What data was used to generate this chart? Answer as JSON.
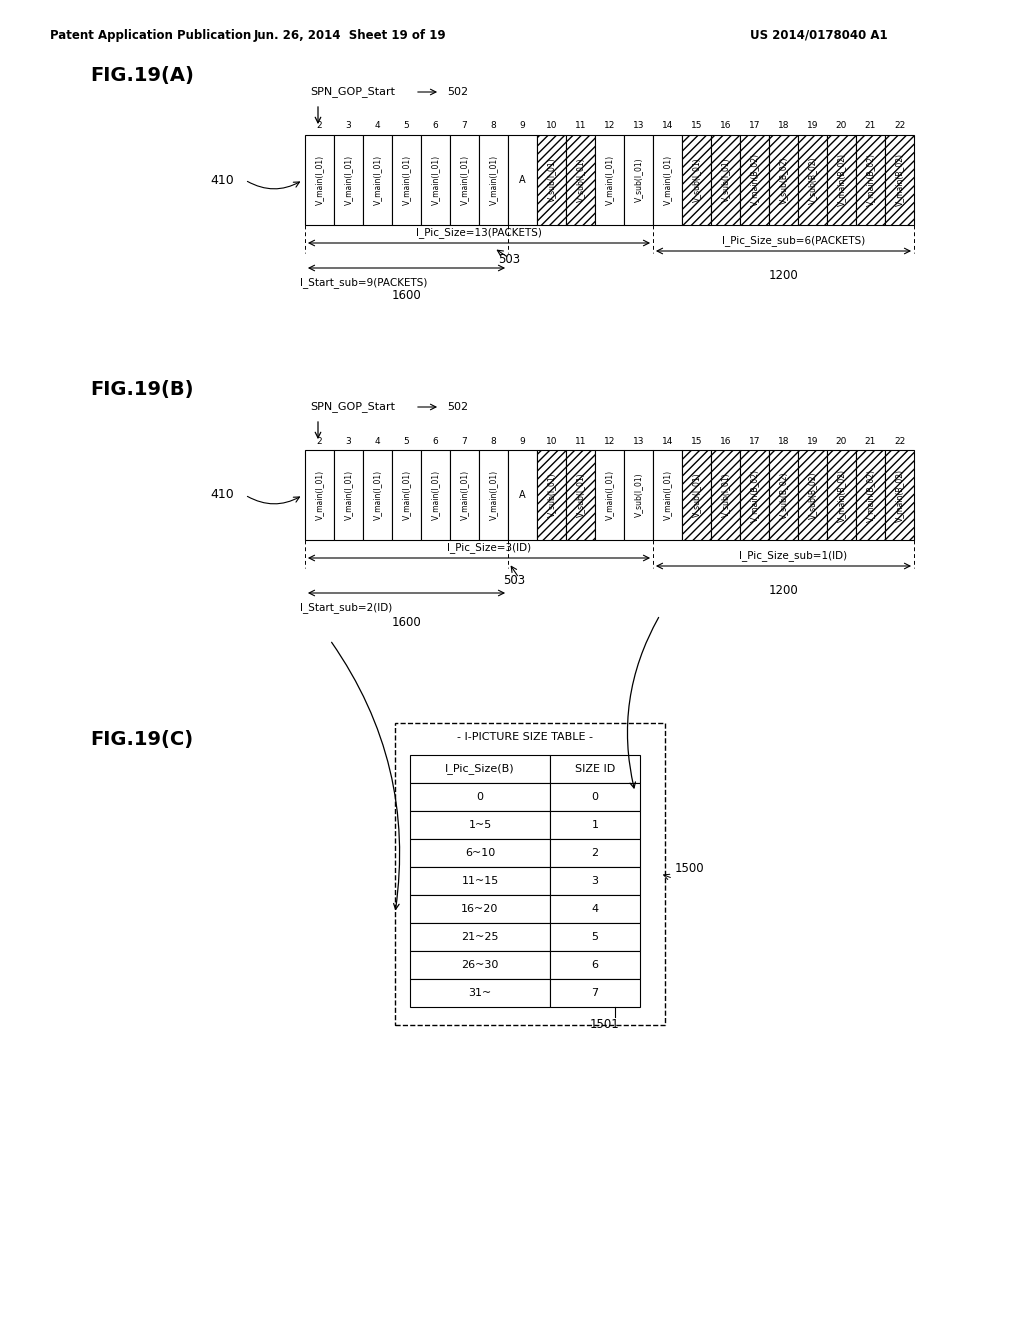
{
  "header_left": "Patent Application Publication",
  "header_mid": "Jun. 26, 2014  Sheet 19 of 19",
  "header_right": "US 2014/0178040 A1",
  "fig_A_label": "FIG.19(A)",
  "fig_B_label": "FIG.19(B)",
  "fig_C_label": "FIG.19(C)",
  "spn_label": "SPN_GOP_Start",
  "spn_ref": "502",
  "ref_410": "410",
  "packet_numbers_A": [
    "2",
    "3",
    "4",
    "5",
    "6",
    "7",
    "8",
    "9",
    "10",
    "11",
    "12",
    "13",
    "14",
    "15",
    "16",
    "17",
    "18",
    "19",
    "20",
    "21",
    "22"
  ],
  "cells_A": [
    {
      "label": "V_main(I_01)",
      "hatched": false
    },
    {
      "label": "V_main(I_01)",
      "hatched": false
    },
    {
      "label": "V_main(I_01)",
      "hatched": false
    },
    {
      "label": "V_main(I_01)",
      "hatched": false
    },
    {
      "label": "V_main(I_01)",
      "hatched": false
    },
    {
      "label": "V_main(I_01)",
      "hatched": false
    },
    {
      "label": "V_main(I_01)",
      "hatched": false
    },
    {
      "label": "A",
      "hatched": false,
      "special": true
    },
    {
      "label": "V_sub(I_01)",
      "hatched": true
    },
    {
      "label": "V_sub(I_01)",
      "hatched": true
    },
    {
      "label": "V_main(I_01)",
      "hatched": false
    },
    {
      "label": "V_sub(I_01)",
      "hatched": false
    },
    {
      "label": "V_main(I_01)",
      "hatched": false
    },
    {
      "label": "V_sub(I_01)",
      "hatched": true
    },
    {
      "label": "V_sub(I_01)",
      "hatched": true
    },
    {
      "label": "V_main(B_02)",
      "hatched": true
    },
    {
      "label": "V_sub(B_02)",
      "hatched": true
    },
    {
      "label": "V_sub(B_02)",
      "hatched": true
    },
    {
      "label": "V_main(B_02)",
      "hatched": true
    },
    {
      "label": "V_main(B_02)",
      "hatched": true
    },
    {
      "label": "V_main(B_02)",
      "hatched": true
    }
  ],
  "cells_B": [
    {
      "label": "V_main(I_01)",
      "hatched": false
    },
    {
      "label": "V_main(I_01)",
      "hatched": false
    },
    {
      "label": "V_main(I_01)",
      "hatched": false
    },
    {
      "label": "V_main(I_01)",
      "hatched": false
    },
    {
      "label": "V_main(I_01)",
      "hatched": false
    },
    {
      "label": "V_main(I_01)",
      "hatched": false
    },
    {
      "label": "V_main(I_01)",
      "hatched": false
    },
    {
      "label": "A",
      "hatched": false,
      "special": true
    },
    {
      "label": "V_sub(I_01)",
      "hatched": true
    },
    {
      "label": "V_sub(I_01)",
      "hatched": true
    },
    {
      "label": "V_main(I_01)",
      "hatched": false
    },
    {
      "label": "V_sub(I_01)",
      "hatched": false
    },
    {
      "label": "V_main(I_01)",
      "hatched": false
    },
    {
      "label": "V_sub(I_01)",
      "hatched": true
    },
    {
      "label": "V_sub(I_01)",
      "hatched": true
    },
    {
      "label": "V_main(B_02)",
      "hatched": true
    },
    {
      "label": "V_sub(B_02)",
      "hatched": true
    },
    {
      "label": "V_sub(B_02)",
      "hatched": true
    },
    {
      "label": "V_main(B_02)",
      "hatched": true
    },
    {
      "label": "V_main(B_02)",
      "hatched": true
    },
    {
      "label": "V_main(B_02)",
      "hatched": true
    }
  ],
  "table_title": "I-PICTURE SIZE TABLE",
  "table_col1": "I_Pic_Size(B)",
  "table_col2": "SIZE ID",
  "table_rows": [
    [
      "0",
      "0"
    ],
    [
      "1~5",
      "1"
    ],
    [
      "6~10",
      "2"
    ],
    [
      "11~15",
      "3"
    ],
    [
      "16~20",
      "4"
    ],
    [
      "21~25",
      "5"
    ],
    [
      "26~30",
      "6"
    ],
    [
      "31~",
      "7"
    ]
  ],
  "ref_1500": "1500",
  "ref_1501": "1501",
  "ref_1600_A": "1600",
  "ref_1200_A": "1200",
  "ref_503_A": "503",
  "ref_1600_B": "1600",
  "ref_1200_B": "1200",
  "ref_503_B": "503",
  "label_A_Pic_Size": "I_Pic_Size=13(PACKETS)",
  "label_A_Start_sub": "I_Start_sub=9(PACKETS)",
  "label_A_Pic_Size_sub": "I_Pic_Size_sub=6(PACKETS)",
  "label_B_Pic_Size": "I_Pic_Size=3(ID)",
  "label_B_Start_sub": "I_Start_sub=2(ID)",
  "label_B_Pic_Size_sub": "I_Pic_Size_sub=1(ID)"
}
